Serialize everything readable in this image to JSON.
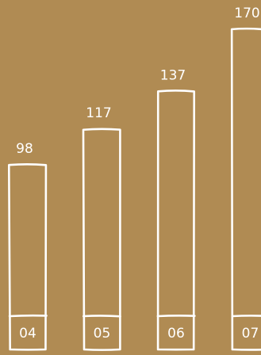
{
  "chart_data": {
    "type": "bar",
    "categories": [
      "04",
      "05",
      "06",
      "07"
    ],
    "values": [
      98,
      117,
      137,
      170
    ],
    "ylim": [
      0,
      170
    ],
    "grid": false,
    "legend": "none",
    "title": "",
    "xlabel": "",
    "ylabel": ""
  },
  "colors": {
    "background": "#b08b53",
    "stroke": "#ffffff",
    "text": "#ffffff"
  }
}
